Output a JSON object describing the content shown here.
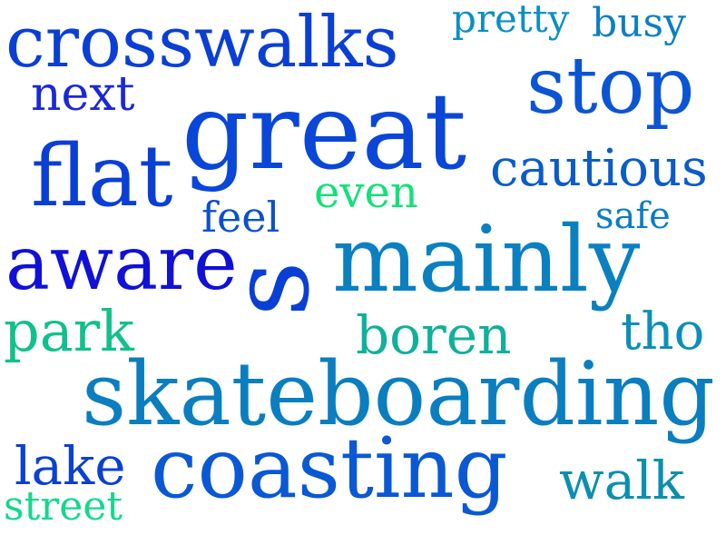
{
  "words": [
    {
      "text": "crosswalks",
      "color": "#0a3fd6"
    },
    {
      "text": "pretty",
      "color": "#0b8fc4"
    },
    {
      "text": "busy",
      "color": "#0b7fc4"
    },
    {
      "text": "next",
      "color": "#1a28d8"
    },
    {
      "text": "stop",
      "color": "#0b55d4"
    },
    {
      "text": "great",
      "color": "#0a46d8"
    },
    {
      "text": "flat",
      "color": "#0a3fd6"
    },
    {
      "text": "cautious",
      "color": "#0b5cc8"
    },
    {
      "text": "even",
      "color": "#14e07a"
    },
    {
      "text": "feel",
      "color": "#0a50d0"
    },
    {
      "text": "safe",
      "color": "#0b7cc4"
    },
    {
      "text": "aware",
      "color": "#1010d8"
    },
    {
      "text": "s",
      "color": "#0a3fd6"
    },
    {
      "text": "mainly",
      "color": "#0b80c0"
    },
    {
      "text": "park",
      "color": "#12c08c"
    },
    {
      "text": "boren",
      "color": "#10b09a"
    },
    {
      "text": "tho",
      "color": "#0b8fb8"
    },
    {
      "text": "skateboarding",
      "color": "#0b7ec0"
    },
    {
      "text": "lake",
      "color": "#0a40d4"
    },
    {
      "text": "coasting",
      "color": "#0a58d4"
    },
    {
      "text": "walk",
      "color": "#0b8fb0"
    },
    {
      "text": "street",
      "color": "#14d88c"
    }
  ]
}
